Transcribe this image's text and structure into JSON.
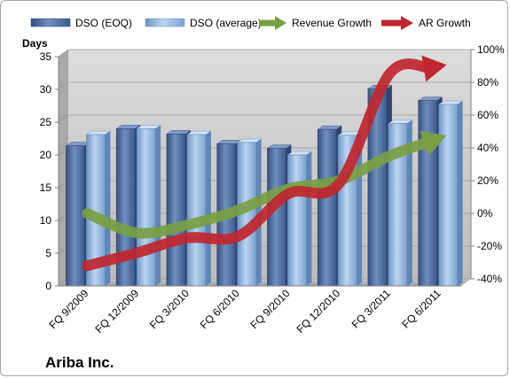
{
  "chart_data": {
    "type": "bar",
    "company": "Ariba Inc.",
    "y_axis_left_title": "Days",
    "categories": [
      "FQ 9/2009",
      "FQ 12/2009",
      "FQ 3/2010",
      "FQ 6/2010",
      "FQ 9/2010",
      "FQ 12/2010",
      "FQ 3/2011",
      "FQ 6/2011"
    ],
    "ylim": [
      0,
      35
    ],
    "yticks": [
      0,
      5,
      10,
      15,
      20,
      25,
      30,
      35
    ],
    "y2lim": [
      -40,
      100
    ],
    "y2ticks": [
      -40,
      -20,
      0,
      20,
      40,
      60,
      80,
      100
    ],
    "y2tick_labels": [
      "-40%",
      "-20%",
      "0%",
      "20%",
      "40%",
      "60%",
      "80%",
      "100%"
    ],
    "series": [
      {
        "name": "DSO (EOQ)",
        "kind": "bar",
        "axis": "left",
        "color": "#4f6f9f",
        "values": [
          21.4,
          24.0,
          23.2,
          21.7,
          21.0,
          23.9,
          30.1,
          28.3
        ]
      },
      {
        "name": "DSO (average)",
        "kind": "bar",
        "axis": "left",
        "color": "#9dc1e4",
        "values": [
          23.1,
          24.0,
          23.1,
          21.9,
          20.0,
          23.0,
          24.8,
          27.7
        ]
      },
      {
        "name": "Revenue Growth",
        "kind": "arrow-line",
        "axis": "right",
        "color": "#77a043",
        "unit": "%",
        "values": [
          0,
          -12,
          -7,
          2,
          15,
          20,
          35,
          46
        ]
      },
      {
        "name": "AR Growth",
        "kind": "arrow-line",
        "axis": "right",
        "color": "#c0262e",
        "unit": "%",
        "values": [
          -32,
          -24,
          -15,
          -14,
          12,
          18,
          85,
          90
        ]
      }
    ],
    "grid": true,
    "legend_position": "top"
  }
}
